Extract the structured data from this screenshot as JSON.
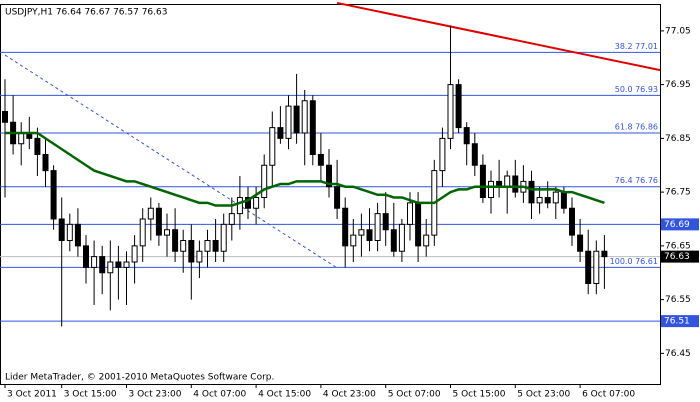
{
  "chart_data": {
    "type": "candlestick",
    "title": "USDJPY,H1  76.64 76.67 76.57 76.63",
    "footer": "Lider MetaTrader, © 2001-2010 MetaQuotes Software Corp.",
    "categories": [
      "3 Oct 2011",
      null,
      null,
      null,
      null,
      null,
      null,
      "3 Oct 15:00",
      null,
      null,
      null,
      null,
      null,
      null,
      null,
      "3 Oct 23:00",
      null,
      null,
      null,
      null,
      null,
      null,
      null,
      "4 Oct 07:00",
      null,
      null,
      null,
      null,
      null,
      null,
      null,
      "4 Oct 15:00",
      null,
      null,
      null,
      null,
      null,
      null,
      null,
      "4 Oct 23:00",
      null,
      null,
      null,
      null,
      null,
      null,
      null,
      "5 Oct 07:00",
      null,
      null,
      null,
      null,
      null,
      null,
      null,
      "5 Oct 15:00",
      null,
      null,
      null,
      null,
      null,
      null,
      null,
      "5 Oct 23:00",
      null,
      null,
      null,
      null,
      null,
      null,
      null,
      "6 Oct 07:00",
      null,
      null,
      null
    ],
    "open": [
      76.9,
      76.88,
      76.84,
      76.86,
      76.85,
      76.82,
      76.79,
      76.7,
      76.66,
      76.69,
      76.65,
      76.61,
      76.63,
      76.6,
      76.62,
      76.61,
      76.62,
      76.65,
      76.7,
      76.72,
      76.67,
      76.68,
      76.64,
      76.66,
      76.62,
      76.64,
      76.66,
      76.64,
      76.69,
      76.71,
      76.74,
      76.72,
      76.74,
      76.8,
      76.87,
      76.85,
      76.91,
      76.86,
      76.92,
      76.82,
      76.8,
      76.76,
      76.72,
      76.65,
      76.67,
      76.68,
      76.66,
      76.71,
      76.68,
      76.64,
      76.69,
      76.73,
      76.65,
      76.67,
      76.79,
      76.85,
      76.95,
      76.87,
      76.84,
      76.8,
      76.74,
      76.77,
      76.76,
      76.78,
      76.75,
      76.77,
      76.73,
      76.74,
      76.73,
      76.75,
      76.72,
      76.67,
      76.64,
      76.58,
      76.64
    ],
    "high": [
      76.96,
      76.93,
      76.88,
      76.89,
      76.87,
      76.85,
      76.8,
      76.74,
      76.71,
      76.72,
      76.67,
      76.66,
      76.65,
      76.66,
      76.65,
      76.64,
      76.67,
      76.72,
      76.74,
      76.73,
      76.71,
      76.72,
      76.68,
      76.69,
      76.66,
      76.68,
      76.7,
      76.71,
      76.74,
      76.78,
      76.76,
      76.76,
      76.82,
      76.9,
      76.91,
      76.93,
      76.97,
      76.94,
      76.93,
      76.86,
      76.83,
      76.81,
      76.74,
      76.7,
      76.71,
      76.72,
      76.73,
      76.75,
      76.73,
      76.7,
      76.75,
      76.75,
      76.7,
      76.81,
      76.87,
      77.06,
      76.96,
      76.88,
      76.86,
      76.82,
      76.79,
      76.81,
      76.79,
      76.81,
      76.8,
      76.79,
      76.76,
      76.77,
      76.76,
      76.76,
      76.74,
      76.7,
      76.68,
      76.66,
      76.67
    ],
    "low": [
      76.74,
      76.82,
      76.8,
      76.83,
      76.78,
      76.76,
      76.68,
      76.5,
      76.64,
      76.63,
      76.58,
      76.54,
      76.56,
      76.53,
      76.55,
      76.54,
      76.58,
      76.62,
      76.66,
      76.65,
      76.63,
      76.62,
      76.6,
      76.55,
      76.59,
      76.61,
      76.62,
      76.62,
      76.66,
      76.68,
      76.7,
      76.69,
      76.72,
      76.76,
      76.84,
      76.83,
      76.84,
      76.8,
      76.8,
      76.77,
      76.74,
      76.7,
      76.61,
      76.62,
      76.63,
      76.64,
      76.64,
      76.65,
      76.63,
      76.62,
      76.66,
      76.62,
      76.63,
      76.65,
      76.76,
      76.83,
      76.86,
      76.8,
      76.78,
      76.73,
      76.71,
      76.74,
      76.71,
      76.74,
      76.73,
      76.7,
      76.71,
      76.72,
      76.7,
      76.71,
      76.65,
      76.62,
      76.56,
      76.56,
      76.57
    ],
    "close": [
      76.88,
      76.84,
      76.86,
      76.85,
      76.82,
      76.79,
      76.7,
      76.66,
      76.69,
      76.65,
      76.61,
      76.63,
      76.6,
      76.62,
      76.61,
      76.62,
      76.65,
      76.7,
      76.72,
      76.67,
      76.68,
      76.64,
      76.66,
      76.62,
      76.64,
      76.66,
      76.64,
      76.69,
      76.71,
      76.74,
      76.72,
      76.74,
      76.8,
      76.87,
      76.85,
      76.91,
      76.86,
      76.92,
      76.82,
      76.8,
      76.76,
      76.72,
      76.65,
      76.67,
      76.68,
      76.66,
      76.71,
      76.68,
      76.64,
      76.69,
      76.73,
      76.65,
      76.67,
      76.79,
      76.85,
      76.95,
      76.87,
      76.84,
      76.8,
      76.74,
      76.77,
      76.76,
      76.78,
      76.75,
      76.77,
      76.73,
      76.74,
      76.73,
      76.75,
      76.72,
      76.67,
      76.64,
      76.58,
      76.64,
      76.63
    ],
    "moving_average": {
      "color": "#006400",
      "values": [
        76.86,
        76.86,
        76.86,
        76.86,
        76.86,
        76.85,
        76.84,
        76.83,
        76.82,
        76.81,
        76.8,
        76.79,
        76.785,
        76.78,
        76.775,
        76.77,
        76.77,
        76.765,
        76.76,
        76.755,
        76.75,
        76.745,
        76.74,
        76.735,
        76.73,
        76.73,
        76.725,
        76.725,
        76.725,
        76.73,
        76.735,
        76.745,
        76.755,
        76.76,
        76.765,
        76.765,
        76.77,
        76.77,
        76.77,
        76.77,
        76.765,
        76.765,
        76.76,
        76.76,
        76.755,
        76.75,
        76.745,
        76.745,
        76.74,
        76.74,
        76.735,
        76.73,
        76.73,
        76.73,
        76.74,
        76.75,
        76.755,
        76.755,
        76.76,
        76.76,
        76.76,
        76.76,
        76.76,
        76.76,
        76.76,
        76.755,
        76.755,
        76.755,
        76.755,
        76.75,
        76.75,
        76.745,
        76.74,
        76.735,
        76.73
      ]
    },
    "fib_levels": [
      {
        "value": 77.01,
        "label": "38.2 77.01"
      },
      {
        "value": 76.93,
        "label": "50.0 76.93"
      },
      {
        "value": 76.86,
        "label": "61.8 76.86"
      },
      {
        "value": 76.76,
        "label": "76.4 76.76"
      },
      {
        "value": 76.61,
        "label": "100.0 76.61"
      }
    ],
    "level_lines": [
      {
        "value": 76.69,
        "label": "76.69",
        "color": "#3355dd"
      },
      {
        "value": 76.51,
        "label": "76.51",
        "color": "#3355dd"
      }
    ],
    "price_line": {
      "value": 76.63,
      "label": "76.63",
      "color": "#000000"
    },
    "trendlines": [
      {
        "color": "#e00000",
        "dashed": false,
        "points": [
          [
            41,
            77.102
          ],
          [
            80.9,
            76.977
          ]
        ]
      },
      {
        "color": "#3355dd",
        "dashed": true,
        "points": [
          [
            0,
            77.005
          ],
          [
            41,
            76.609
          ]
        ]
      }
    ],
    "ylim": [
      76.393,
      77.1
    ],
    "yticks": [
      77.05,
      76.95,
      76.85,
      76.75,
      76.65,
      76.55,
      76.45
    ]
  }
}
